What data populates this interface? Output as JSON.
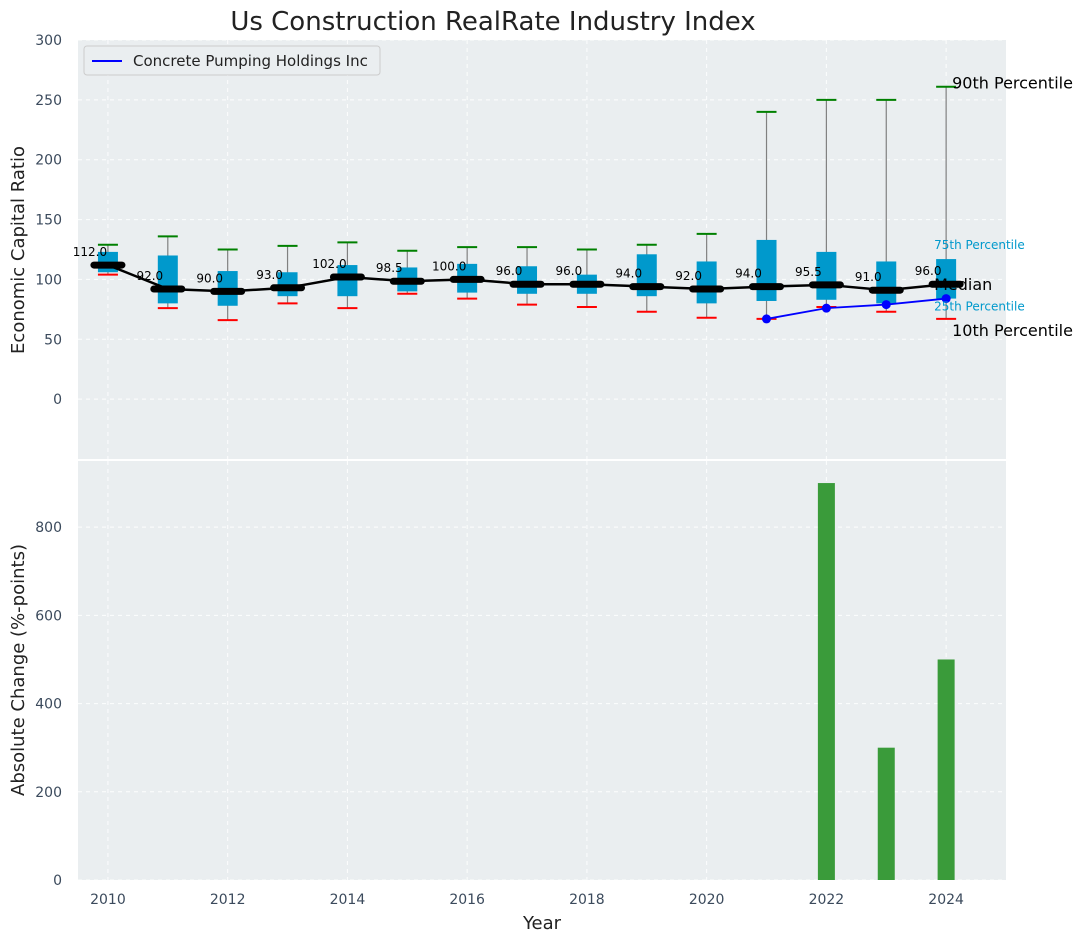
{
  "chart_data": [
    {
      "type": "box",
      "title": "Us Construction RealRate Industry Index",
      "ylabel": "Economic Capital Ratio",
      "ylim": [
        -50,
        300
      ],
      "yticks": [
        0,
        50,
        100,
        150,
        200,
        250,
        300
      ],
      "grid": true,
      "legend": {
        "position": "upper-left",
        "entries": [
          {
            "name": "Concrete Pumping Holdings Inc",
            "color": "#0000ff"
          }
        ]
      },
      "years": [
        2010,
        2011,
        2012,
        2013,
        2014,
        2015,
        2016,
        2017,
        2018,
        2019,
        2020,
        2021,
        2022,
        2023,
        2024
      ],
      "boxes": [
        {
          "year": 2010,
          "p10": 104,
          "p25": 106,
          "median": 112.0,
          "p75": 123,
          "p90": 129,
          "label": "112.0"
        },
        {
          "year": 2011,
          "p10": 76,
          "p25": 80,
          "median": 92.0,
          "p75": 120,
          "p90": 136,
          "label": "92.0"
        },
        {
          "year": 2012,
          "p10": 66,
          "p25": 78,
          "median": 90.0,
          "p75": 107,
          "p90": 125,
          "label": "90.0"
        },
        {
          "year": 2013,
          "p10": 80,
          "p25": 86,
          "median": 93.0,
          "p75": 106,
          "p90": 128,
          "label": "93.0"
        },
        {
          "year": 2014,
          "p10": 76,
          "p25": 86,
          "median": 102.0,
          "p75": 112,
          "p90": 131,
          "label": "102.0"
        },
        {
          "year": 2015,
          "p10": 88,
          "p25": 90,
          "median": 98.5,
          "p75": 110,
          "p90": 124,
          "label": "98.5"
        },
        {
          "year": 2016,
          "p10": 84,
          "p25": 89,
          "median": 100.0,
          "p75": 113,
          "p90": 127,
          "label": "100.0"
        },
        {
          "year": 2017,
          "p10": 79,
          "p25": 88,
          "median": 96.0,
          "p75": 111,
          "p90": 127,
          "label": "96.0"
        },
        {
          "year": 2018,
          "p10": 77,
          "p25": 88,
          "median": 96.0,
          "p75": 104,
          "p90": 125,
          "label": "96.0"
        },
        {
          "year": 2019,
          "p10": 73,
          "p25": 86,
          "median": 94.0,
          "p75": 121,
          "p90": 129,
          "label": "94.0"
        },
        {
          "year": 2020,
          "p10": 68,
          "p25": 80,
          "median": 92.0,
          "p75": 115,
          "p90": 138,
          "label": "92.0"
        },
        {
          "year": 2021,
          "p10": 67,
          "p25": 82,
          "median": 94.0,
          "p75": 133,
          "p90": 240,
          "label": "94.0"
        },
        {
          "year": 2022,
          "p10": 77,
          "p25": 83,
          "median": 95.5,
          "p75": 123,
          "p90": 250,
          "label": "95.5"
        },
        {
          "year": 2023,
          "p10": 73,
          "p25": 80,
          "median": 91.0,
          "p75": 115,
          "p90": 250,
          "label": "91.0"
        },
        {
          "year": 2024,
          "p10": 67,
          "p25": 84,
          "median": 96.0,
          "p75": 117,
          "p90": 261,
          "label": "96.0"
        }
      ],
      "company_series": {
        "name": "Concrete Pumping Holdings Inc",
        "x": [
          2021,
          2022,
          2023,
          2024
        ],
        "y": [
          67,
          76,
          79,
          84
        ]
      },
      "annotations": {
        "p90": "90th Percentile",
        "p75": "75th Percentile",
        "median": "Median",
        "p25": "25th Percentile",
        "p10": "10th Percentile"
      },
      "colors": {
        "box": "#0099cc",
        "median_line": "#000000",
        "whisker": "#808080",
        "p90_cap": "#008000",
        "p10_cap": "#ff0000",
        "company": "#0000ff",
        "plot_bg": "#eaeef0",
        "tick_text": "#3b4a5c"
      }
    },
    {
      "type": "bar",
      "ylabel": "Absolute Change (%-points)",
      "xlabel": "Year",
      "ylim": [
        0,
        950
      ],
      "yticks": [
        0,
        200,
        400,
        600,
        800
      ],
      "xticks": [
        2010,
        2012,
        2014,
        2016,
        2018,
        2020,
        2022,
        2024
      ],
      "xlim": [
        2009.5,
        2025
      ],
      "grid": true,
      "x": [
        2022,
        2023,
        2024
      ],
      "values": [
        900,
        300,
        500
      ],
      "bar_color": "#3a9b3a"
    }
  ]
}
